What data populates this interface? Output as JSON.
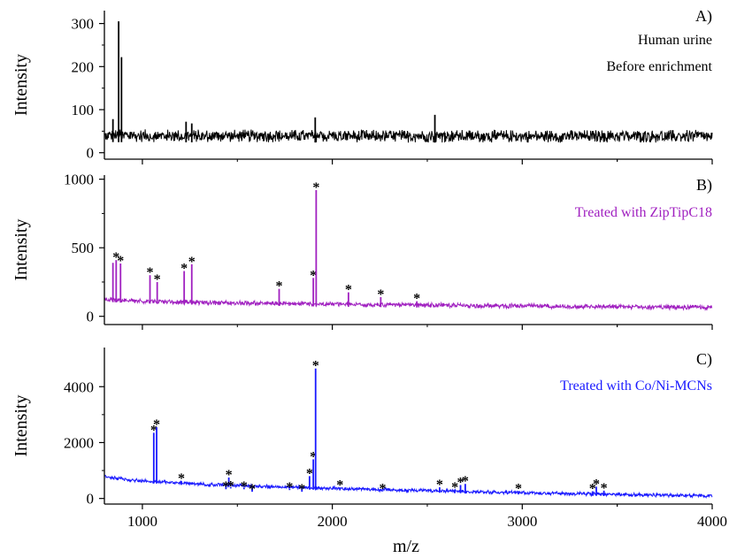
{
  "figure": {
    "xlabel": "m/z",
    "xticks": [
      "1000",
      "2000",
      "3000",
      "4000"
    ]
  },
  "chart_data": [
    {
      "type": "line",
      "panel_label": "A)",
      "annotation_lines": [
        "Human urine",
        "Before enrichment"
      ],
      "ylabel": "Intensity",
      "yticks": [
        "0",
        "100",
        "200",
        "300"
      ],
      "ylim": [
        -15,
        330
      ],
      "xlim": [
        800,
        4000
      ],
      "color": "#000000",
      "annotation_color": "#000000",
      "baseline": {
        "start": 40,
        "end": 38,
        "noise": 30
      },
      "peaks": [
        {
          "x": 875,
          "y": 305,
          "starred": false
        },
        {
          "x": 890,
          "y": 222,
          "starred": false
        },
        {
          "x": 845,
          "y": 78,
          "starred": false
        },
        {
          "x": 1230,
          "y": 72,
          "starred": false
        },
        {
          "x": 1260,
          "y": 68,
          "starred": false
        },
        {
          "x": 1910,
          "y": 82,
          "starred": false
        },
        {
          "x": 2540,
          "y": 88,
          "starred": false
        }
      ]
    },
    {
      "type": "line",
      "panel_label": "B)",
      "annotation_lines": [
        "Treated with ZipTipC18"
      ],
      "ylabel": "Intensity",
      "yticks": [
        "0",
        "500",
        "1000"
      ],
      "ylim": [
        -60,
        1030
      ],
      "xlim": [
        800,
        4000
      ],
      "color": "#a020c0",
      "annotation_color": "#a020c0",
      "baseline": {
        "start": 130,
        "end": 65,
        "noise": 35
      },
      "peaks": [
        {
          "x": 845,
          "y": 390,
          "starred": false
        },
        {
          "x": 862,
          "y": 410,
          "starred": true
        },
        {
          "x": 885,
          "y": 385,
          "starred": true
        },
        {
          "x": 1040,
          "y": 300,
          "starred": true
        },
        {
          "x": 1078,
          "y": 250,
          "starred": true
        },
        {
          "x": 1220,
          "y": 330,
          "starred": true
        },
        {
          "x": 1260,
          "y": 380,
          "starred": true
        },
        {
          "x": 1720,
          "y": 200,
          "starred": true
        },
        {
          "x": 1900,
          "y": 280,
          "starred": true
        },
        {
          "x": 1915,
          "y": 920,
          "starred": true
        },
        {
          "x": 2085,
          "y": 175,
          "starred": true
        },
        {
          "x": 2255,
          "y": 140,
          "starred": true
        },
        {
          "x": 2445,
          "y": 110,
          "starred": true
        }
      ]
    },
    {
      "type": "line",
      "panel_label": "C)",
      "annotation_lines": [
        "Treated with Co/Ni-MCNs"
      ],
      "ylabel": "Intensity",
      "yticks": [
        "0",
        "2000",
        "4000"
      ],
      "ylim": [
        -200,
        5400
      ],
      "xlim": [
        800,
        4000
      ],
      "color": "#1a1aff",
      "annotation_color": "#1a1aff",
      "baseline": {
        "start": 850,
        "end": 90,
        "noise": 130
      },
      "peaks": [
        {
          "x": 1060,
          "y": 2350,
          "starred": true
        },
        {
          "x": 1075,
          "y": 2550,
          "starred": true
        },
        {
          "x": 1205,
          "y": 620,
          "starred": true
        },
        {
          "x": 1440,
          "y": 330,
          "starred": true
        },
        {
          "x": 1455,
          "y": 750,
          "starred": true
        },
        {
          "x": 1465,
          "y": 360,
          "starred": true
        },
        {
          "x": 1535,
          "y": 330,
          "starred": true
        },
        {
          "x": 1578,
          "y": 240,
          "starred": true
        },
        {
          "x": 1775,
          "y": 300,
          "starred": true
        },
        {
          "x": 1840,
          "y": 240,
          "starred": true
        },
        {
          "x": 1880,
          "y": 800,
          "starred": true
        },
        {
          "x": 1900,
          "y": 1400,
          "starred": true
        },
        {
          "x": 1912,
          "y": 4650,
          "starred": true
        },
        {
          "x": 2040,
          "y": 380,
          "starred": true
        },
        {
          "x": 2265,
          "y": 260,
          "starred": true
        },
        {
          "x": 2565,
          "y": 400,
          "starred": true
        },
        {
          "x": 2645,
          "y": 300,
          "starred": true
        },
        {
          "x": 2675,
          "y": 480,
          "starred": true
        },
        {
          "x": 2700,
          "y": 520,
          "starred": true
        },
        {
          "x": 2980,
          "y": 260,
          "starred": true
        },
        {
          "x": 3370,
          "y": 260,
          "starred": true
        },
        {
          "x": 3390,
          "y": 420,
          "starred": true
        },
        {
          "x": 3430,
          "y": 280,
          "starred": true
        }
      ]
    }
  ]
}
